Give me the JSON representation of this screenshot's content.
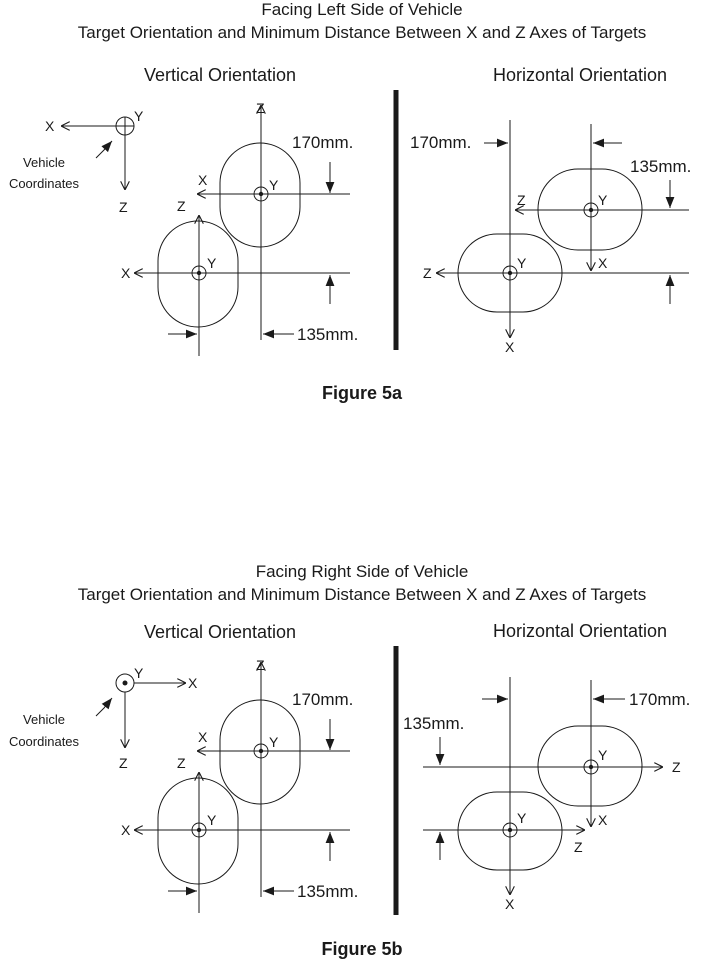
{
  "figure_a": {
    "title_line1": "Facing Left Side of Vehicle",
    "title_line2": "Target Orientation and Minimum Distance Between X and Z Axes of Targets",
    "vertical_heading": "Vertical Orientation",
    "horizontal_heading": "Horizontal Orientation",
    "caption": "Figure 5a",
    "coords": {
      "x": "X",
      "y": "Y",
      "z": "Z",
      "label_line1": "Vehicle",
      "label_line2": "Coordinates"
    },
    "vertical": {
      "dim_top": "170mm.",
      "dim_bottom": "135mm."
    },
    "horizontal": {
      "dim_left": "170mm.",
      "dim_right": "135mm."
    }
  },
  "figure_b": {
    "title_line1": "Facing Right Side of Vehicle",
    "title_line2": "Target Orientation and Minimum Distance Between X and Z Axes of Targets",
    "vertical_heading": "Vertical Orientation",
    "horizontal_heading": "Horizontal Orientation",
    "caption": "Figure 5b",
    "coords": {
      "x": "X",
      "y": "Y",
      "z": "Z",
      "label_line1": "Vehicle",
      "label_line2": "Coordinates"
    },
    "vertical": {
      "dim_top": "170mm.",
      "dim_bottom": "135mm."
    },
    "horizontal": {
      "dim_left": "135mm.",
      "dim_right": "170mm."
    }
  }
}
